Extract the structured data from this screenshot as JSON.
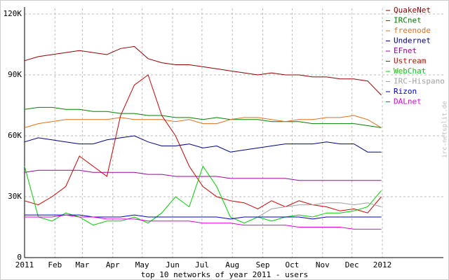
{
  "chart_data": {
    "type": "line",
    "title": "top 10 networks of year 2011 - users",
    "watermark": "irc-netsplit.de",
    "x": [
      0,
      14,
      28,
      42,
      56,
      70,
      84,
      98,
      112,
      126,
      140,
      154,
      168,
      182,
      196,
      210,
      224,
      238,
      252,
      266,
      280,
      294,
      308,
      322,
      336,
      350,
      364
    ],
    "xlim": [
      0,
      365
    ],
    "xticks": [
      {
        "value": 0,
        "label": "2011"
      },
      {
        "value": 31,
        "label": "Feb"
      },
      {
        "value": 59,
        "label": "Mar"
      },
      {
        "value": 90,
        "label": "Apr"
      },
      {
        "value": 120,
        "label": "May"
      },
      {
        "value": 151,
        "label": "Jun"
      },
      {
        "value": 181,
        "label": "Jul"
      },
      {
        "value": 212,
        "label": "Aug"
      },
      {
        "value": 243,
        "label": "Sep"
      },
      {
        "value": 273,
        "label": "Oct"
      },
      {
        "value": 304,
        "label": "Nov"
      },
      {
        "value": 334,
        "label": "Dec"
      },
      {
        "value": 365,
        "label": "2012"
      }
    ],
    "ylim": [
      0,
      120000
    ],
    "yticks": [
      0,
      {
        "value": 30000,
        "label": "30K"
      },
      {
        "value": 60000,
        "label": "60K"
      },
      {
        "value": 90000,
        "label": "90K"
      },
      {
        "value": 120000,
        "label": "120K"
      }
    ],
    "grid": true,
    "legend": "top-right",
    "series": [
      {
        "name": "QuakeNet",
        "color": "#900000",
        "values": [
          97000,
          99000,
          100000,
          101000,
          102000,
          101000,
          100000,
          103000,
          104000,
          98000,
          96000,
          95000,
          95000,
          94000,
          93000,
          92000,
          91000,
          90000,
          91000,
          90000,
          90000,
          89000,
          89000,
          88000,
          88000,
          87000,
          80000
        ]
      },
      {
        "name": "IRCnet",
        "color": "#008000",
        "values": [
          73000,
          74000,
          74000,
          73000,
          73000,
          72000,
          72000,
          71000,
          71000,
          70000,
          70000,
          69000,
          69000,
          68000,
          69000,
          68000,
          68000,
          68000,
          67000,
          67000,
          67000,
          66000,
          66000,
          66000,
          66000,
          65000,
          64000
        ]
      },
      {
        "name": "freenode",
        "color": "#e07020",
        "values": [
          64000,
          66000,
          67000,
          68000,
          68000,
          68000,
          68000,
          69000,
          68000,
          68000,
          68000,
          67000,
          68000,
          66000,
          66000,
          68000,
          69000,
          69000,
          68000,
          67000,
          68000,
          68000,
          69000,
          69000,
          70000,
          68000,
          64000
        ]
      },
      {
        "name": "Undernet",
        "color": "#000080",
        "values": [
          57000,
          59000,
          58000,
          57000,
          56000,
          56000,
          58000,
          59000,
          60000,
          57000,
          55000,
          55000,
          56000,
          54000,
          55000,
          52000,
          53000,
          54000,
          55000,
          56000,
          56000,
          56000,
          57000,
          56000,
          56000,
          52000,
          52000
        ]
      },
      {
        "name": "EFnet",
        "color": "#a000a0",
        "values": [
          42000,
          43000,
          43000,
          43000,
          43000,
          42000,
          42000,
          42000,
          42000,
          41000,
          41000,
          40000,
          40000,
          40000,
          40000,
          39000,
          39000,
          39000,
          39000,
          39000,
          38000,
          38000,
          38000,
          38000,
          38000,
          38000,
          38000
        ]
      },
      {
        "name": "Ustream",
        "color": "#d00000",
        "values": [
          28000,
          26000,
          30000,
          35000,
          50000,
          45000,
          40000,
          70000,
          85000,
          90000,
          70000,
          60000,
          45000,
          35000,
          30000,
          28000,
          27000,
          24000,
          28000,
          25000,
          28000,
          26000,
          25000,
          23000,
          24000,
          22000,
          30000
        ]
      },
      {
        "name": "WebChat",
        "color": "#00d000",
        "values": [
          45000,
          20000,
          18000,
          22000,
          20000,
          16000,
          18000,
          18000,
          20000,
          17000,
          22000,
          30000,
          25000,
          45000,
          35000,
          20000,
          17000,
          20000,
          18000,
          20000,
          21000,
          20000,
          22000,
          22000,
          23000,
          25000,
          33000
        ]
      },
      {
        "name": "IRC-Hispano",
        "color": "#a0a0a0",
        "values": [
          null,
          null,
          null,
          null,
          null,
          null,
          null,
          null,
          null,
          null,
          null,
          null,
          null,
          null,
          null,
          null,
          null,
          20000,
          24000,
          25000,
          26000,
          26000,
          27000,
          27000,
          26000,
          27000,
          25000
        ]
      },
      {
        "name": "Rizon",
        "color": "#0000c0",
        "values": [
          21000,
          21000,
          21000,
          21000,
          21000,
          20000,
          20000,
          20000,
          21000,
          20000,
          20000,
          20000,
          20000,
          20000,
          20000,
          19000,
          20000,
          20000,
          20000,
          20000,
          20000,
          19000,
          20000,
          20000,
          20000,
          20000,
          20000
        ]
      },
      {
        "name": "DALnet",
        "color": "#e000e0",
        "values": [
          20000,
          20000,
          20000,
          21000,
          20000,
          20000,
          19000,
          19000,
          19000,
          18000,
          18000,
          18000,
          18000,
          17000,
          17000,
          17000,
          16000,
          16000,
          16000,
          16000,
          15000,
          15000,
          15000,
          15000,
          14000,
          14000,
          14000
        ]
      }
    ]
  }
}
